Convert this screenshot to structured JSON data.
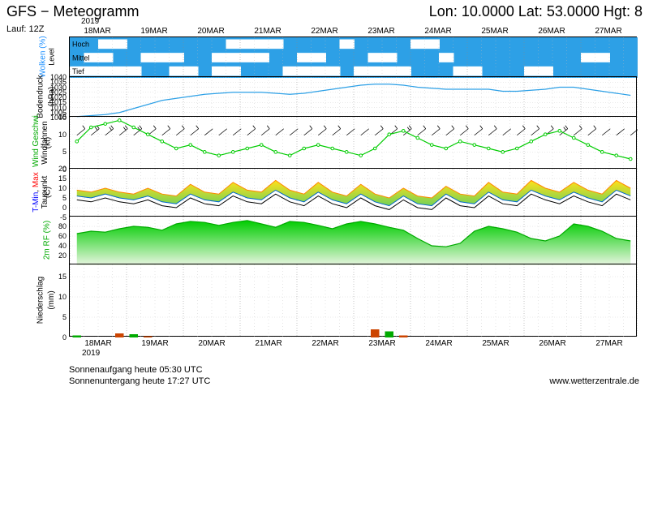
{
  "header": {
    "title_left": "GFS − Meteogramm",
    "title_right": "Lon: 10.0000 Lat: 53.0000 Hgt: 8",
    "run": "Lauf: 12Z"
  },
  "xaxis": {
    "year": "2019",
    "dates": [
      "18MAR",
      "19MAR",
      "20MAR",
      "21MAR",
      "22MAR",
      "23MAR",
      "24MAR",
      "25MAR",
      "26MAR",
      "27MAR"
    ],
    "n_days": 10,
    "minor_per_day": 4
  },
  "panels": {
    "clouds": {
      "height": 50,
      "ylabel": "Wolken (%)",
      "ylabel_color": "#1e90ff",
      "levels": [
        "Hoch",
        "Mittel",
        "Tief"
      ],
      "bg_color": "#2da0e6",
      "cloud_color": "#ffffff",
      "hoch": [
        0,
        0,
        1,
        1,
        0,
        0,
        0,
        0,
        0,
        0,
        0,
        1,
        1,
        1,
        1,
        0,
        0,
        0,
        0,
        1,
        0,
        0,
        0,
        0,
        1,
        1,
        0,
        0,
        0,
        0,
        0,
        0,
        0,
        0,
        0,
        0,
        0,
        0,
        0,
        0
      ],
      "mittel": [
        0,
        1,
        1,
        0,
        0,
        1,
        1,
        1,
        0,
        0,
        1,
        1,
        1,
        1,
        0,
        0,
        1,
        1,
        0,
        0,
        0,
        1,
        1,
        0,
        0,
        0,
        1,
        0,
        0,
        0,
        0,
        0,
        0,
        0,
        0,
        0,
        1,
        1,
        0,
        0
      ],
      "tief": [
        1,
        1,
        1,
        1,
        1,
        0,
        0,
        1,
        1,
        0,
        1,
        1,
        0,
        0,
        0,
        1,
        1,
        1,
        1,
        0,
        1,
        1,
        1,
        1,
        0,
        0,
        0,
        1,
        1,
        0,
        0,
        0,
        1,
        1,
        0,
        0,
        0,
        0,
        0,
        0
      ]
    },
    "pressure": {
      "height": 50,
      "ylabel": "Bodendruck",
      "unit": "(hPa)",
      "ymin": 1000,
      "ymax": 1040,
      "ytick_step": 5,
      "line_color": "#2da0e6",
      "values": [
        1001,
        1002,
        1003,
        1005,
        1009,
        1013,
        1017,
        1019,
        1021,
        1023,
        1024,
        1025,
        1025,
        1025,
        1024,
        1023,
        1024,
        1026,
        1028,
        1030,
        1032,
        1033,
        1033,
        1032,
        1030,
        1029,
        1028,
        1028,
        1028,
        1028,
        1026,
        1026,
        1027,
        1028,
        1030,
        1030,
        1028,
        1026,
        1024,
        1022
      ]
    },
    "wind": {
      "height": 65,
      "ylabel1": "Wind Geschwi.",
      "ylabel1_color": "#00aa00",
      "ylabel2": "Windfahnen",
      "unit": "(kt)",
      "ymin": 0,
      "ymax": 15,
      "ytick_step": 5,
      "line_color": "#00cc00",
      "values": [
        8,
        12,
        13,
        14,
        12,
        10,
        8,
        6,
        7,
        5,
        4,
        5,
        6,
        7,
        5,
        4,
        6,
        7,
        6,
        5,
        4,
        6,
        10,
        11,
        9,
        7,
        6,
        8,
        7,
        6,
        5,
        6,
        8,
        10,
        11,
        9,
        7,
        5,
        4,
        3
      ],
      "barb_color": "#000000"
    },
    "temp": {
      "height": 60,
      "ylabel1": "T-Min, Max",
      "ylabel1_colors": [
        "#0000ff",
        "#ff0000"
      ],
      "ylabel2": "Taupunkt",
      "unit": "(C)",
      "ymin": -5,
      "ymax": 20,
      "ytick_step": 5,
      "tmax_color": "#ff8800",
      "tmin_color": "#0066cc",
      "fill_high": "#ffdd00",
      "fill_low": "#66cc44",
      "dew_color": "#000000",
      "tmax": [
        9,
        8,
        10,
        8,
        7,
        10,
        7,
        6,
        12,
        8,
        7,
        13,
        9,
        8,
        14,
        9,
        7,
        13,
        8,
        6,
        12,
        7,
        5,
        10,
        6,
        5,
        11,
        7,
        6,
        13,
        8,
        7,
        14,
        10,
        8,
        13,
        9,
        7,
        14,
        10
      ],
      "tmin": [
        6,
        5,
        7,
        5,
        4,
        6,
        3,
        2,
        7,
        4,
        3,
        8,
        5,
        4,
        9,
        5,
        3,
        8,
        4,
        2,
        7,
        3,
        1,
        6,
        2,
        1,
        7,
        3,
        2,
        8,
        4,
        3,
        9,
        6,
        4,
        8,
        5,
        3,
        9,
        6
      ],
      "dew": [
        4,
        3,
        5,
        3,
        2,
        4,
        1,
        0,
        5,
        2,
        1,
        6,
        3,
        2,
        7,
        3,
        1,
        6,
        2,
        0,
        5,
        1,
        -1,
        4,
        0,
        -1,
        5,
        1,
        0,
        6,
        2,
        1,
        7,
        4,
        2,
        6,
        3,
        1,
        7,
        4
      ]
    },
    "humidity": {
      "height": 60,
      "ylabel": "2m RF (%)",
      "ylabel_color": "#00aa00",
      "ymin": 0,
      "ymax": 100,
      "yticks": [
        20,
        40,
        60,
        80
      ],
      "line_color": "#00aa00",
      "fill_top": "#00cc00",
      "fill_bottom": "#e8f5e0",
      "values": [
        65,
        70,
        68,
        75,
        80,
        78,
        72,
        85,
        90,
        88,
        82,
        88,
        92,
        85,
        78,
        90,
        88,
        82,
        75,
        85,
        90,
        85,
        78,
        72,
        55,
        40,
        38,
        45,
        70,
        80,
        75,
        68,
        55,
        50,
        60,
        85,
        80,
        70,
        55,
        50
      ]
    },
    "precip": {
      "height": 90,
      "ylabel": "Niederschlag",
      "unit": "(mm)",
      "ymin": 0,
      "ymax": 18,
      "ytick_step": 5,
      "bar_color1": "#00aa00",
      "bar_color2": "#cc4400",
      "values": [
        0.5,
        0,
        0,
        1,
        0.8,
        0.3,
        0,
        0,
        0,
        0,
        0,
        0,
        0,
        0,
        0,
        0,
        0,
        0,
        0,
        0,
        0,
        2,
        1.5,
        0.5,
        0,
        0,
        0,
        0,
        0,
        0,
        0,
        0,
        0,
        0,
        0,
        0,
        0,
        0,
        0,
        0
      ]
    }
  },
  "footer": {
    "sunrise": "Sonnenaufgang heute 05:30 UTC",
    "sunset": "Sonnenuntergang heute 17:27 UTC",
    "credit": "www.wetterzentrale.de"
  },
  "colors": {
    "grid": "#aaaaaa",
    "text": "#000000"
  }
}
